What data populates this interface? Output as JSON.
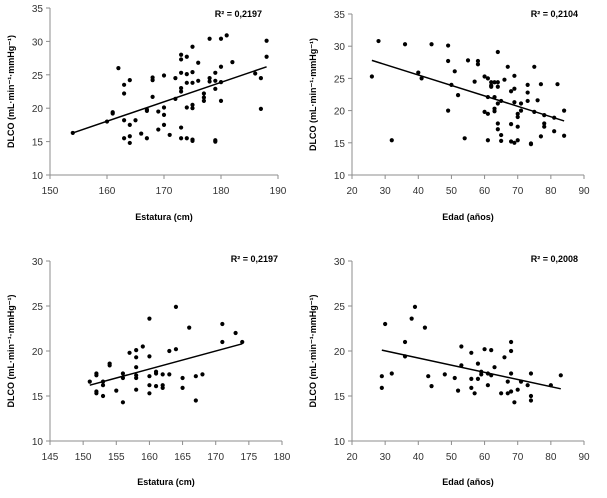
{
  "chart_data": [
    {
      "type": "scatter",
      "panel": "top-left",
      "title": "",
      "xlabel": "Estatura (cm)",
      "ylabel": "DLCO (mL·min⁻¹·mmHg⁻¹)",
      "xlim": [
        150,
        190
      ],
      "ylim": [
        10,
        35
      ],
      "xticks": [
        150,
        160,
        170,
        180,
        190
      ],
      "yticks": [
        10,
        15,
        20,
        25,
        30,
        35
      ],
      "annotation": "R² = 0,2197",
      "trendline": {
        "x": [
          154,
          188
        ],
        "y": [
          16.3,
          26.2
        ]
      },
      "points": [
        [
          154,
          16.3
        ],
        [
          160,
          18
        ],
        [
          161,
          19.2
        ],
        [
          161,
          19.4
        ],
        [
          162,
          26
        ],
        [
          163,
          23.5
        ],
        [
          163,
          22.2
        ],
        [
          163,
          18.2
        ],
        [
          163,
          15.5
        ],
        [
          164,
          24.2
        ],
        [
          164,
          17.5
        ],
        [
          164,
          15.8
        ],
        [
          164,
          14.8
        ],
        [
          165,
          18.2
        ],
        [
          166,
          16.2
        ],
        [
          167,
          19.8
        ],
        [
          167,
          19.6
        ],
        [
          167,
          15.5
        ],
        [
          168,
          24.6
        ],
        [
          168,
          24.2
        ],
        [
          168,
          21.7
        ],
        [
          169,
          19.5
        ],
        [
          169,
          16.8
        ],
        [
          170,
          24.9
        ],
        [
          170,
          20.1
        ],
        [
          170,
          19
        ],
        [
          170,
          17.5
        ],
        [
          171,
          16
        ],
        [
          172,
          24.5
        ],
        [
          172,
          21.4
        ],
        [
          173,
          28
        ],
        [
          173,
          27.3
        ],
        [
          173,
          25.3
        ],
        [
          173,
          23
        ],
        [
          173,
          22.5
        ],
        [
          173,
          17.1
        ],
        [
          173,
          15.5
        ],
        [
          174,
          27.7
        ],
        [
          174,
          25.1
        ],
        [
          174,
          23.8
        ],
        [
          174,
          20.1
        ],
        [
          174,
          15.5
        ],
        [
          175,
          29.2
        ],
        [
          175,
          25.4
        ],
        [
          175,
          23.8
        ],
        [
          175,
          20.5
        ],
        [
          175,
          20
        ],
        [
          175,
          15.3
        ],
        [
          175,
          15.1
        ],
        [
          176,
          26.8
        ],
        [
          176,
          24.1
        ],
        [
          177,
          22.2
        ],
        [
          177,
          21.6
        ],
        [
          177,
          21.1
        ],
        [
          178,
          30.4
        ],
        [
          178,
          24.5
        ],
        [
          178,
          24
        ],
        [
          179,
          25.3
        ],
        [
          179,
          24.1
        ],
        [
          179,
          22.9
        ],
        [
          179,
          15.2
        ],
        [
          179,
          15
        ],
        [
          180,
          30.4
        ],
        [
          180,
          26.2
        ],
        [
          180,
          23.9
        ],
        [
          180,
          21.1
        ],
        [
          181,
          30.9
        ],
        [
          182,
          26.9
        ],
        [
          186,
          25.2
        ],
        [
          187,
          24.5
        ],
        [
          187,
          19.9
        ],
        [
          188,
          30.1
        ],
        [
          188,
          27.7
        ]
      ]
    },
    {
      "type": "scatter",
      "panel": "top-right",
      "title": "",
      "xlabel": "Edad (años)",
      "ylabel": "DLCO (mL·min⁻¹·mmHg⁻¹)",
      "xlim": [
        20,
        90
      ],
      "ylim": [
        10,
        35
      ],
      "xticks": [
        20,
        30,
        40,
        50,
        60,
        70,
        80,
        90
      ],
      "yticks": [
        10,
        15,
        20,
        25,
        30,
        35
      ],
      "annotation": "R² = 0,2104",
      "trendline": {
        "x": [
          26,
          84
        ],
        "y": [
          27.8,
          18.4
        ]
      },
      "points": [
        [
          26,
          25.3
        ],
        [
          28,
          30.8
        ],
        [
          32,
          15.4
        ],
        [
          36,
          30.3
        ],
        [
          40,
          25.9
        ],
        [
          41,
          25
        ],
        [
          44,
          30.3
        ],
        [
          49,
          30.1
        ],
        [
          49,
          27.7
        ],
        [
          49,
          20
        ],
        [
          50,
          24
        ],
        [
          51,
          26.1
        ],
        [
          52,
          22.4
        ],
        [
          54,
          15.7
        ],
        [
          55,
          27.8
        ],
        [
          57,
          24.5
        ],
        [
          58,
          27.7
        ],
        [
          58,
          27.2
        ],
        [
          60,
          25.3
        ],
        [
          60,
          19.8
        ],
        [
          61,
          25
        ],
        [
          61,
          22.1
        ],
        [
          61,
          19.5
        ],
        [
          61,
          15.4
        ],
        [
          62,
          24.4
        ],
        [
          62,
          23.9
        ],
        [
          62,
          23.7
        ],
        [
          63,
          24.4
        ],
        [
          63,
          22.1
        ],
        [
          63,
          20.3
        ],
        [
          63,
          19.9
        ],
        [
          64,
          29.1
        ],
        [
          64,
          24.4
        ],
        [
          64,
          23.7
        ],
        [
          64,
          21.1
        ],
        [
          64,
          18
        ],
        [
          64,
          17.1
        ],
        [
          65,
          21.5
        ],
        [
          65,
          16.2
        ],
        [
          65,
          15.3
        ],
        [
          66,
          24.8
        ],
        [
          67,
          26.8
        ],
        [
          68,
          23
        ],
        [
          68,
          17.9
        ],
        [
          68,
          15.2
        ],
        [
          69,
          25.4
        ],
        [
          69,
          23.4
        ],
        [
          69,
          21.3
        ],
        [
          69,
          15
        ],
        [
          70,
          19.5
        ],
        [
          70,
          19
        ],
        [
          70,
          17.5
        ],
        [
          70,
          15.4
        ],
        [
          71,
          21.1
        ],
        [
          71,
          20
        ],
        [
          73,
          24
        ],
        [
          73,
          22.8
        ],
        [
          73,
          21.5
        ],
        [
          74,
          14.9
        ],
        [
          74,
          14.8
        ],
        [
          75,
          26.8
        ],
        [
          75,
          19.8
        ],
        [
          76,
          21.6
        ],
        [
          77,
          24.1
        ],
        [
          77,
          16
        ],
        [
          78,
          19.3
        ],
        [
          78,
          18
        ],
        [
          78,
          17.5
        ],
        [
          81,
          18.9
        ],
        [
          81,
          16.8
        ],
        [
          82,
          24.1
        ],
        [
          84,
          20
        ],
        [
          84,
          16.1
        ]
      ]
    },
    {
      "type": "scatter",
      "panel": "bottom-left",
      "title": "",
      "xlabel": "Estatura (cm)",
      "ylabel": "DLCO (mL·min⁻¹·mmHg⁻¹)",
      "xlim": [
        145,
        180
      ],
      "ylim": [
        10,
        30
      ],
      "xticks": [
        145,
        150,
        155,
        160,
        165,
        170,
        175,
        180
      ],
      "yticks": [
        10,
        15,
        20,
        25,
        30
      ],
      "annotation": "R² = 0,2197",
      "trendline": {
        "x": [
          151,
          174
        ],
        "y": [
          16.2,
          20.8
        ]
      },
      "points": [
        [
          151,
          16.6
        ],
        [
          152,
          17.5
        ],
        [
          152,
          17.3
        ],
        [
          152,
          15.5
        ],
        [
          152,
          15.3
        ],
        [
          153,
          16.6
        ],
        [
          153,
          16.2
        ],
        [
          153,
          15
        ],
        [
          154,
          18.6
        ],
        [
          154,
          18.4
        ],
        [
          155,
          15.6
        ],
        [
          156,
          17.5
        ],
        [
          156,
          17
        ],
        [
          156,
          14.3
        ],
        [
          157,
          19.8
        ],
        [
          158,
          20.1
        ],
        [
          158,
          19.3
        ],
        [
          158,
          18.2
        ],
        [
          158,
          17.3
        ],
        [
          158,
          17
        ],
        [
          158,
          15.7
        ],
        [
          159,
          20.5
        ],
        [
          160,
          23.6
        ],
        [
          160,
          19.4
        ],
        [
          160,
          17.2
        ],
        [
          160,
          16.2
        ],
        [
          160,
          15.3
        ],
        [
          161,
          17.7
        ],
        [
          161,
          17.5
        ],
        [
          161,
          16.1
        ],
        [
          162,
          17.4
        ],
        [
          162,
          16.2
        ],
        [
          162,
          15.9
        ],
        [
          163,
          20
        ],
        [
          163,
          17.4
        ],
        [
          164,
          24.9
        ],
        [
          164,
          20.2
        ],
        [
          165,
          17
        ],
        [
          165,
          15.9
        ],
        [
          166,
          22.6
        ],
        [
          167,
          17.2
        ],
        [
          167,
          14.5
        ],
        [
          168,
          17.4
        ],
        [
          171,
          23
        ],
        [
          171,
          21
        ],
        [
          173,
          22
        ],
        [
          174,
          21
        ]
      ]
    },
    {
      "type": "scatter",
      "panel": "bottom-right",
      "title": "",
      "xlabel": "Edad (años)",
      "ylabel": "DLCO (mL·min⁻¹·mmHg⁻¹)",
      "xlim": [
        20,
        90
      ],
      "ylim": [
        10,
        30
      ],
      "xticks": [
        20,
        30,
        40,
        50,
        60,
        70,
        80,
        90
      ],
      "yticks": [
        10,
        15,
        20,
        25,
        30
      ],
      "annotation": "R² = 0,2008",
      "trendline": {
        "x": [
          29,
          83
        ],
        "y": [
          20.1,
          15.8
        ]
      },
      "points": [
        [
          29,
          17.2
        ],
        [
          29,
          15.9
        ],
        [
          30,
          23
        ],
        [
          32,
          17.5
        ],
        [
          36,
          21
        ],
        [
          36,
          19.4
        ],
        [
          38,
          23.6
        ],
        [
          39,
          24.9
        ],
        [
          42,
          22.6
        ],
        [
          43,
          17.2
        ],
        [
          44,
          16.1
        ],
        [
          48,
          17.4
        ],
        [
          51,
          17
        ],
        [
          52,
          15.6
        ],
        [
          53,
          20.5
        ],
        [
          53,
          18.4
        ],
        [
          56,
          19.8
        ],
        [
          56,
          16.9
        ],
        [
          56,
          15.9
        ],
        [
          57,
          15.3
        ],
        [
          58,
          18.6
        ],
        [
          58,
          16.9
        ],
        [
          59,
          17.7
        ],
        [
          59,
          17.4
        ],
        [
          60,
          20.2
        ],
        [
          61,
          17.5
        ],
        [
          61,
          16.2
        ],
        [
          62,
          20.1
        ],
        [
          62,
          17.3
        ],
        [
          63,
          18.2
        ],
        [
          65,
          15.3
        ],
        [
          66,
          19.3
        ],
        [
          67,
          16.6
        ],
        [
          67,
          15.3
        ],
        [
          68,
          21
        ],
        [
          68,
          20
        ],
        [
          68,
          17.5
        ],
        [
          68,
          15.5
        ],
        [
          69,
          14.3
        ],
        [
          70,
          15.7
        ],
        [
          71,
          16.6
        ],
        [
          73,
          16.2
        ],
        [
          74,
          17.5
        ],
        [
          74,
          15
        ],
        [
          74,
          14.5
        ],
        [
          80,
          16.2
        ],
        [
          83,
          17.3
        ]
      ]
    }
  ]
}
